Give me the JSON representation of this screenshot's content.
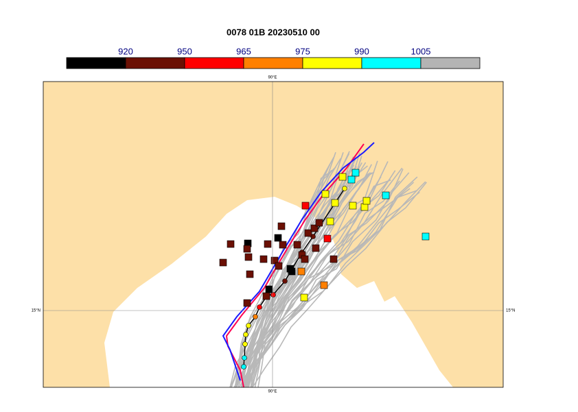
{
  "title": "0078 01B 20230510 00",
  "colorbar": {
    "labels": [
      920,
      950,
      965,
      975,
      990,
      1005
    ],
    "colors": [
      "#000000",
      "#6b1004",
      "#ff0000",
      "#ff8000",
      "#ffff00",
      "#00ffff",
      "#b4b4b4"
    ]
  },
  "axes": {
    "top": "90°E",
    "bottom": "90°E",
    "left": "15°N",
    "right": "15°N"
  }
}
